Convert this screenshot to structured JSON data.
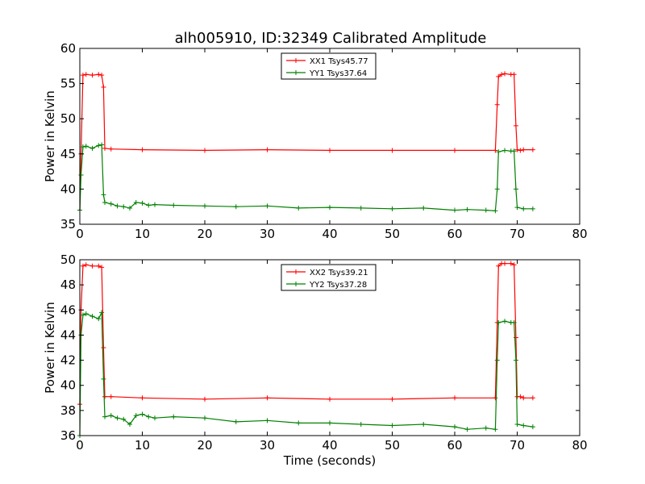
{
  "title": "alh005910, ID:32349 Calibrated Amplitude",
  "chart_data": [
    {
      "type": "line",
      "xlabel": "",
      "ylabel": "Power in Kelvin",
      "xlim": [
        0,
        80
      ],
      "ylim": [
        35,
        60
      ],
      "xticks": [
        0,
        10,
        20,
        30,
        40,
        50,
        60,
        70,
        80
      ],
      "yticks": [
        35,
        40,
        45,
        50,
        55,
        60
      ],
      "grid": false,
      "legend_position": "top-center",
      "series": [
        {
          "name": "XX1 Tsys45.77",
          "color": "#ff0000",
          "x": [
            0,
            0.2,
            0.5,
            1,
            2,
            3,
            3.5,
            3.8,
            4,
            5,
            10,
            20,
            30,
            40,
            50,
            60,
            66.5,
            66.8,
            67,
            67.5,
            68,
            69,
            69.5,
            69.8,
            70,
            70.5,
            71,
            72.5
          ],
          "y": [
            37,
            45,
            56.2,
            56.3,
            56.2,
            56.3,
            56.2,
            54.5,
            45.8,
            45.7,
            45.6,
            45.5,
            45.6,
            45.5,
            45.5,
            45.5,
            45.5,
            52,
            56,
            56.3,
            56.4,
            56.3,
            56.3,
            49,
            45.6,
            45.5,
            45.6,
            45.6
          ]
        },
        {
          "name": "YY1 Tsys37.64",
          "color": "#008000",
          "x": [
            0,
            0.2,
            0.5,
            1,
            2,
            3,
            3.5,
            3.8,
            4,
            5,
            6,
            7,
            8,
            9,
            10,
            11,
            12,
            15,
            20,
            25,
            30,
            35,
            40,
            45,
            50,
            55,
            60,
            62,
            65,
            66.5,
            66.8,
            67,
            68,
            69,
            69.5,
            69.8,
            70,
            71,
            72.5
          ],
          "y": [
            37,
            42,
            46,
            46.1,
            45.8,
            46.2,
            46.3,
            39.2,
            38.1,
            37.9,
            37.6,
            37.5,
            37.3,
            38.1,
            38.0,
            37.7,
            37.8,
            37.7,
            37.6,
            37.5,
            37.6,
            37.3,
            37.4,
            37.3,
            37.2,
            37.3,
            37.0,
            37.1,
            37.0,
            36.9,
            40,
            45.3,
            45.5,
            45.4,
            45.4,
            40,
            37.4,
            37.2,
            37.2
          ]
        }
      ]
    },
    {
      "type": "line",
      "xlabel": "Time (seconds)",
      "ylabel": "Power in Kelvin",
      "xlim": [
        0,
        80
      ],
      "ylim": [
        36,
        50
      ],
      "xticks": [
        0,
        10,
        20,
        30,
        40,
        50,
        60,
        70,
        80
      ],
      "yticks": [
        36,
        38,
        40,
        42,
        44,
        46,
        48,
        50
      ],
      "grid": false,
      "legend_position": "top-center",
      "series": [
        {
          "name": "XX2 Tsys39.21",
          "color": "#ff0000",
          "x": [
            0,
            0.2,
            0.5,
            1,
            2,
            3,
            3.5,
            3.8,
            4,
            5,
            10,
            20,
            30,
            40,
            50,
            60,
            66.5,
            66.8,
            67,
            67.5,
            68,
            69,
            69.5,
            69.8,
            70,
            70.5,
            71,
            72.5
          ],
          "y": [
            38.5,
            46,
            49.5,
            49.6,
            49.5,
            49.5,
            49.4,
            43,
            39.1,
            39.1,
            39.0,
            38.9,
            39.0,
            38.9,
            38.9,
            39.0,
            39.0,
            45,
            49.5,
            49.7,
            49.7,
            49.7,
            49.6,
            43.8,
            39.1,
            39.1,
            39.0,
            39.0
          ]
        },
        {
          "name": "YY2 Tsys37.28",
          "color": "#008000",
          "x": [
            0,
            0.2,
            0.5,
            1,
            2,
            3,
            3.5,
            3.8,
            4,
            5,
            6,
            7,
            8,
            9,
            10,
            11,
            12,
            15,
            20,
            25,
            30,
            35,
            40,
            45,
            50,
            55,
            60,
            62,
            65,
            66.5,
            66.8,
            67,
            68,
            69,
            69.5,
            69.8,
            70,
            71,
            72.5
          ],
          "y": [
            36,
            44,
            45.6,
            45.7,
            45.5,
            45.3,
            45.8,
            40.5,
            37.5,
            37.6,
            37.4,
            37.3,
            36.9,
            37.6,
            37.7,
            37.5,
            37.4,
            37.5,
            37.4,
            37.1,
            37.2,
            37.0,
            37.0,
            36.9,
            36.8,
            36.9,
            36.7,
            36.5,
            36.6,
            36.5,
            42,
            45.0,
            45.1,
            45.0,
            45.0,
            42,
            36.9,
            36.8,
            36.7
          ]
        }
      ]
    }
  ]
}
